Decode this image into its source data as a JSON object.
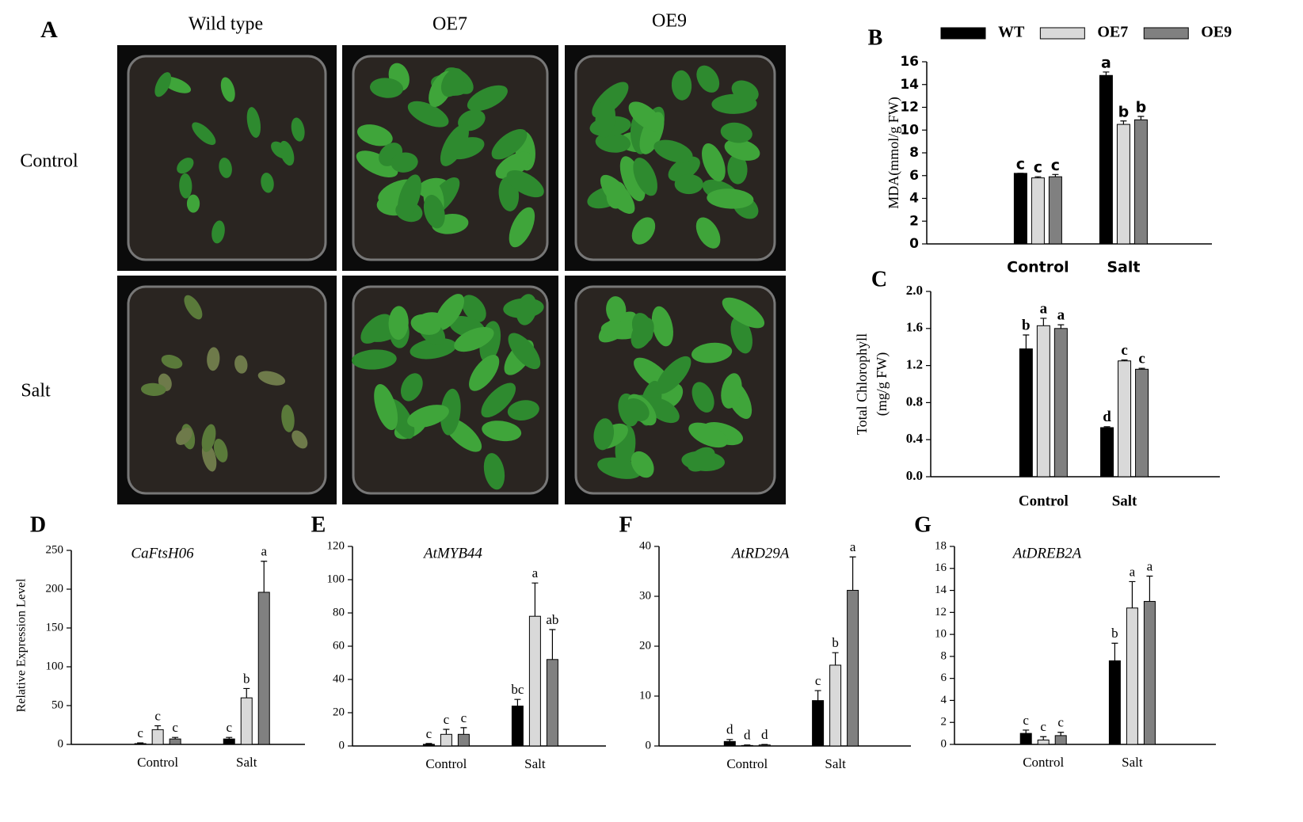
{
  "photo_panel": {
    "panel_label": "A",
    "columns": [
      "Wild type",
      "OE7",
      "OE9"
    ],
    "rows": [
      "Control",
      "Salt"
    ]
  },
  "chart_data": [
    {
      "type": "bar",
      "panel_label": "B",
      "ylabel": "MDA(mmol/g FW)",
      "categories": [
        "Control",
        "Salt"
      ],
      "series": [
        {
          "name": "WT",
          "color": "#000000",
          "values": [
            6.2,
            14.8
          ],
          "errors": [
            0,
            0.3
          ],
          "labels": [
            "c",
            "a"
          ]
        },
        {
          "name": "OE7",
          "color": "#d9d9d9",
          "values": [
            5.8,
            10.5
          ],
          "errors": [
            0.1,
            0.3
          ],
          "labels": [
            "c",
            "b"
          ]
        },
        {
          "name": "OE9",
          "color": "#808080",
          "values": [
            5.9,
            10.9
          ],
          "errors": [
            0.2,
            0.3
          ],
          "labels": [
            "c",
            "b"
          ]
        }
      ],
      "ylim": [
        0,
        16
      ],
      "yticks": [
        0,
        2,
        4,
        6,
        8,
        10,
        12,
        14,
        16
      ],
      "legend": "top"
    },
    {
      "type": "bar",
      "panel_label": "C",
      "ylabel": [
        "Total Chlorophyll",
        "(mg/g FW)"
      ],
      "categories": [
        "Control",
        "Salt"
      ],
      "series": [
        {
          "name": "WT",
          "color": "#000000",
          "values": [
            1.38,
            0.53
          ],
          "errors": [
            0.15,
            0.01
          ],
          "labels": [
            "b",
            "d"
          ]
        },
        {
          "name": "OE7",
          "color": "#d9d9d9",
          "values": [
            1.63,
            1.25
          ],
          "errors": [
            0.08,
            0.01
          ],
          "labels": [
            "a",
            "c"
          ]
        },
        {
          "name": "OE9",
          "color": "#808080",
          "values": [
            1.6,
            1.16
          ],
          "errors": [
            0.04,
            0.01
          ],
          "labels": [
            "a",
            "c"
          ]
        }
      ],
      "ylim": [
        0,
        2
      ],
      "yticks": [
        {
          "value": 0,
          "label": "0.0"
        },
        {
          "value": 0.4,
          "label": "0.4"
        },
        {
          "value": 0.8,
          "label": "0.8"
        },
        {
          "value": 1.2,
          "label": "1.2"
        },
        {
          "value": 1.6,
          "label": "1.6"
        },
        {
          "value": 2,
          "label": "2.0"
        }
      ]
    },
    {
      "type": "bar",
      "panel_label": "D",
      "title": "CaFtsH06",
      "ylabel": "Relative Expression Level",
      "categories": [
        "Control",
        "Salt"
      ],
      "series": [
        {
          "color": "#000000",
          "values": [
            1,
            7
          ],
          "errors": [
            1,
            2
          ],
          "labels": [
            "c",
            "c"
          ]
        },
        {
          "color": "#d9d9d9",
          "values": [
            19,
            60
          ],
          "errors": [
            5,
            12
          ],
          "labels": [
            "c",
            "b"
          ]
        },
        {
          "color": "#808080",
          "values": [
            7,
            196
          ],
          "errors": [
            2,
            40
          ],
          "labels": [
            "c",
            "a"
          ]
        }
      ],
      "ylim": [
        0,
        250
      ],
      "yticks": [
        0,
        50,
        100,
        150,
        200,
        250
      ]
    },
    {
      "type": "bar",
      "panel_label": "E",
      "title": "AtMYB44",
      "categories": [
        "Control",
        "Salt"
      ],
      "series": [
        {
          "color": "#000000",
          "values": [
            1,
            24
          ],
          "errors": [
            0.5,
            4
          ],
          "labels": [
            "c",
            "bc"
          ]
        },
        {
          "color": "#d9d9d9",
          "values": [
            7,
            78
          ],
          "errors": [
            3,
            20
          ],
          "labels": [
            "c",
            "a"
          ]
        },
        {
          "color": "#808080",
          "values": [
            7,
            52
          ],
          "errors": [
            4,
            18
          ],
          "labels": [
            "c",
            "ab"
          ]
        }
      ],
      "ylim": [
        0,
        120
      ],
      "yticks": [
        0,
        20,
        40,
        60,
        80,
        100,
        120
      ]
    },
    {
      "type": "bar",
      "panel_label": "F",
      "title": "AtRD29A",
      "categories": [
        "Control",
        "Salt"
      ],
      "series": [
        {
          "color": "#000000",
          "values": [
            0.9,
            9.1
          ],
          "errors": [
            0.4,
            2
          ],
          "labels": [
            "d",
            "c"
          ]
        },
        {
          "color": "#d9d9d9",
          "values": [
            0.1,
            16.2
          ],
          "errors": [
            0.1,
            2.5
          ],
          "labels": [
            "d",
            "b"
          ]
        },
        {
          "color": "#808080",
          "values": [
            0.2,
            31.2
          ],
          "errors": [
            0.1,
            6.7
          ],
          "labels": [
            "d",
            "a"
          ]
        }
      ],
      "ylim": [
        0,
        40
      ],
      "yticks": [
        0,
        10,
        20,
        30,
        40
      ]
    },
    {
      "type": "bar",
      "panel_label": "G",
      "title": "AtDREB2A",
      "categories": [
        "Control",
        "Salt"
      ],
      "series": [
        {
          "color": "#000000",
          "values": [
            1.0,
            7.6
          ],
          "errors": [
            0.3,
            1.6
          ],
          "labels": [
            "c",
            "b"
          ]
        },
        {
          "color": "#d9d9d9",
          "values": [
            0.4,
            12.4
          ],
          "errors": [
            0.3,
            2.4
          ],
          "labels": [
            "c",
            "a"
          ]
        },
        {
          "color": "#808080",
          "values": [
            0.8,
            13.0
          ],
          "errors": [
            0.3,
            2.3
          ],
          "labels": [
            "c",
            "a"
          ]
        }
      ],
      "ylim": [
        0,
        18
      ],
      "yticks": [
        0,
        2,
        4,
        6,
        8,
        10,
        12,
        14,
        16,
        18
      ]
    }
  ]
}
